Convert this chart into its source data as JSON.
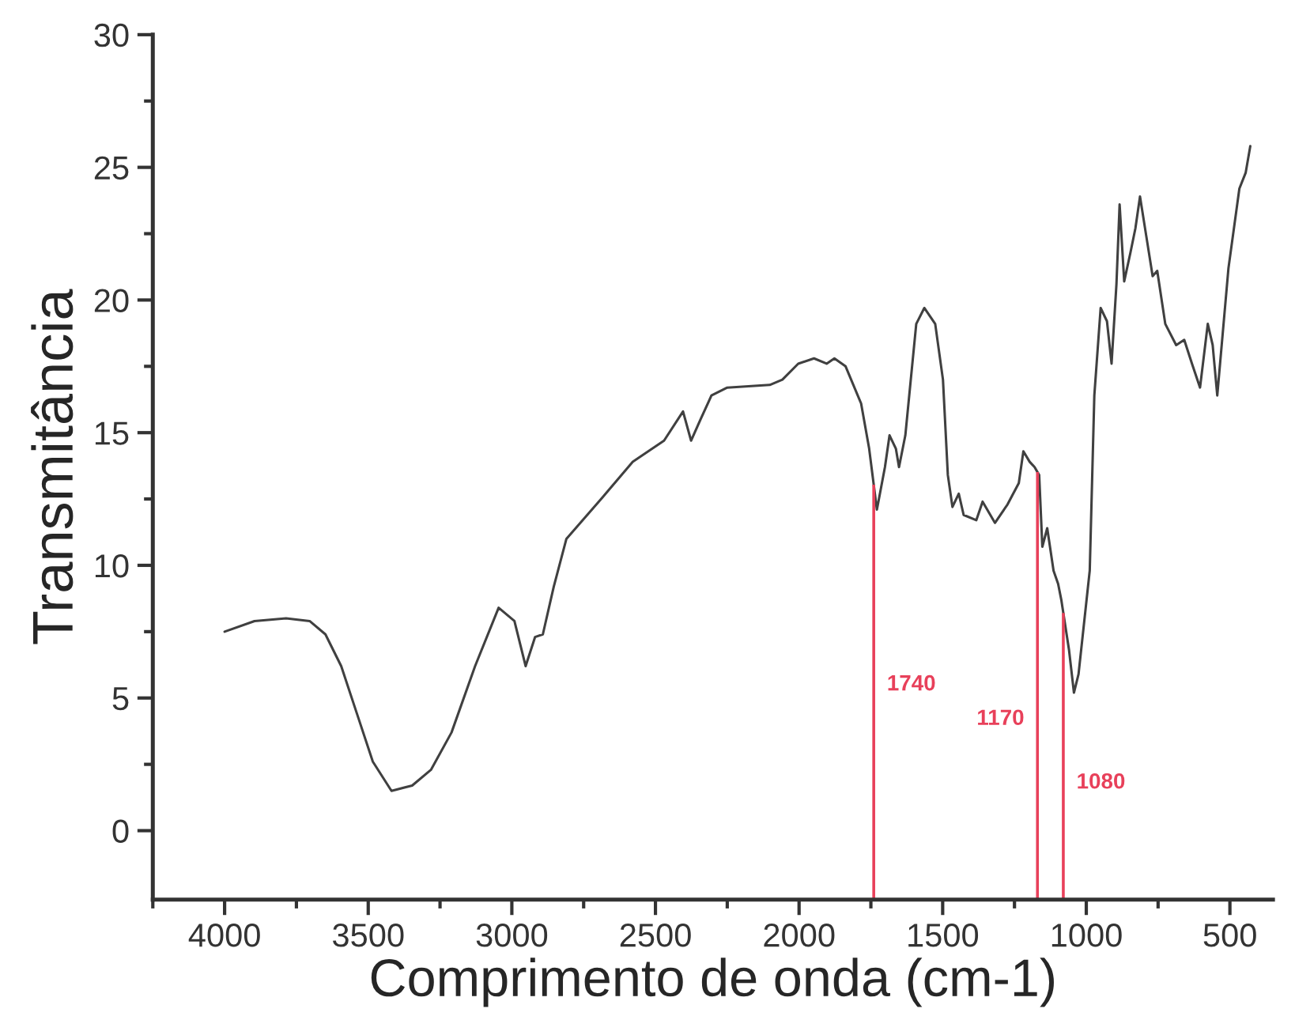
{
  "chart_data": {
    "type": "line",
    "xlabel": "Comprimento de onda (cm-1)",
    "ylabel": "Transmitância",
    "xlim": [
      4250,
      350
    ],
    "ylim": [
      -2.6,
      30
    ],
    "xticks": [
      {
        "value": 4250,
        "label": null
      },
      4000,
      {
        "value": 3750,
        "label": null
      },
      3500,
      {
        "value": 3250,
        "label": null
      },
      3000,
      {
        "value": 2750,
        "label": null
      },
      2500,
      {
        "value": 2250,
        "label": null
      },
      2000,
      {
        "value": 1750,
        "label": null
      },
      1500,
      {
        "value": 1250,
        "label": null
      },
      1000,
      {
        "value": 750,
        "label": null
      },
      500
    ],
    "yticks": [
      0,
      {
        "value": 2.5,
        "label": null
      },
      5,
      {
        "value": 7.5,
        "label": null
      },
      10,
      {
        "value": 12.5,
        "label": null
      },
      15,
      {
        "value": 17.5,
        "label": null
      },
      20,
      {
        "value": 22.5,
        "label": null
      },
      25,
      {
        "value": 27.5,
        "label": null
      },
      30
    ],
    "grid": false,
    "legend": false,
    "marker": "none",
    "line_style": "solid",
    "series": [
      {
        "color": "#404040",
        "x": [
          4000,
          3896,
          3786,
          3704,
          3649,
          3594,
          3539,
          3484,
          3419,
          3347,
          3281,
          3210,
          3128,
          3046,
          2991,
          2952,
          2919,
          2892,
          2854,
          2810,
          2689,
          2579,
          2470,
          2404,
          2376,
          2343,
          2305,
          2250,
          2102,
          2058,
          2003,
          1948,
          1904,
          1877,
          1838,
          1784,
          1756,
          1729,
          1701,
          1685,
          1663,
          1652,
          1630,
          1592,
          1564,
          1526,
          1499,
          1482,
          1466,
          1444,
          1427,
          1383,
          1361,
          1318,
          1274,
          1235,
          1219,
          1197,
          1180,
          1164,
          1153,
          1136,
          1114,
          1098,
          1087,
          1060,
          1043,
          1027,
          988,
          972,
          950,
          928,
          912,
          895,
          884,
          868,
          846,
          829,
          813,
          791,
          769,
          753,
          725,
          687,
          659,
          632,
          604,
          577,
          560,
          544,
          505,
          467,
          445,
          429
        ],
        "values": [
          7.5,
          7.9,
          8.0,
          7.9,
          7.4,
          6.2,
          4.4,
          2.6,
          1.5,
          1.7,
          2.3,
          3.7,
          6.2,
          8.4,
          7.9,
          6.2,
          7.3,
          7.4,
          9.2,
          11.0,
          12.5,
          13.9,
          14.7,
          15.8,
          14.7,
          15.5,
          16.4,
          16.7,
          16.8,
          17.0,
          17.6,
          17.8,
          17.6,
          17.8,
          17.5,
          16.1,
          14.4,
          12.1,
          13.7,
          14.9,
          14.4,
          13.7,
          14.9,
          19.1,
          19.7,
          19.1,
          17.0,
          13.4,
          12.2,
          12.7,
          11.9,
          11.7,
          12.4,
          11.6,
          12.3,
          13.1,
          14.3,
          13.9,
          13.7,
          13.4,
          10.7,
          11.4,
          9.8,
          9.3,
          8.7,
          6.8,
          5.2,
          5.9,
          9.8,
          16.4,
          19.7,
          19.2,
          17.6,
          20.6,
          23.6,
          20.7,
          21.8,
          22.7,
          23.9,
          22.4,
          20.9,
          21.1,
          19.1,
          18.3,
          18.5,
          17.6,
          16.7,
          19.1,
          18.3,
          16.4,
          21.2,
          24.2,
          24.8,
          25.8
        ]
      }
    ],
    "ref_lines": [
      {
        "axis": "x",
        "value": 1740,
        "label": "1740",
        "color": "#e8405a"
      },
      {
        "axis": "x",
        "value": 1170,
        "label": "1170",
        "color": "#e8405a"
      },
      {
        "axis": "x",
        "value": 1080,
        "label": "1080",
        "color": "#e8405a"
      }
    ]
  }
}
